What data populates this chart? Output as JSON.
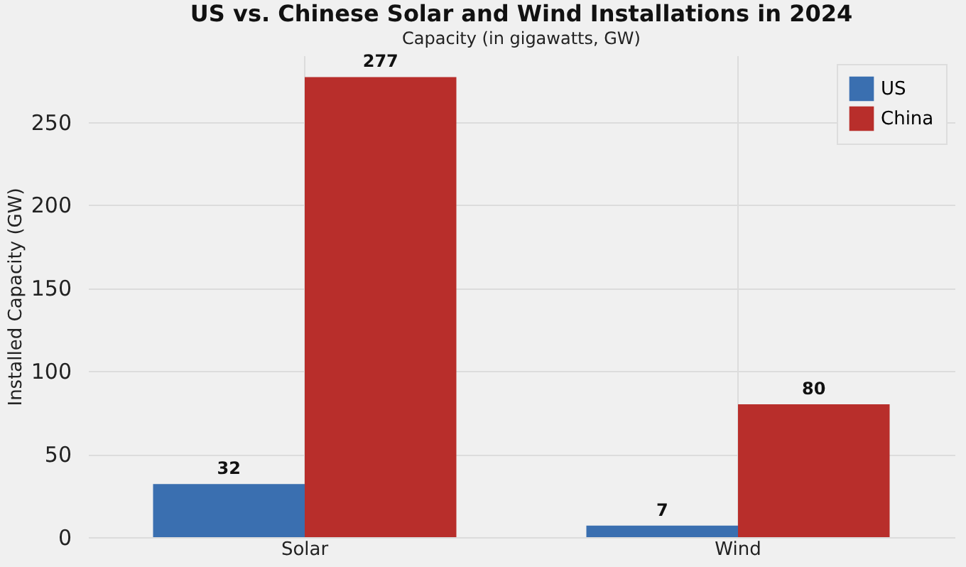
{
  "chart_data": {
    "type": "bar",
    "title": "US vs. Chinese Solar and Wind Installations in 2024",
    "subtitle": "Capacity (in gigawatts, GW)",
    "ylabel": "Installed Capacity (GW)",
    "categories": [
      "Solar",
      "Wind"
    ],
    "series": [
      {
        "name": "US",
        "color": "#3a6fb0",
        "values": [
          32,
          7
        ]
      },
      {
        "name": "China",
        "color": "#b82e2b",
        "values": [
          277,
          80
        ]
      }
    ],
    "ylim": [
      0,
      290
    ],
    "yticks": [
      0,
      50,
      100,
      150,
      200,
      250
    ],
    "grid": true,
    "legend": "top right",
    "data_labels": true
  }
}
